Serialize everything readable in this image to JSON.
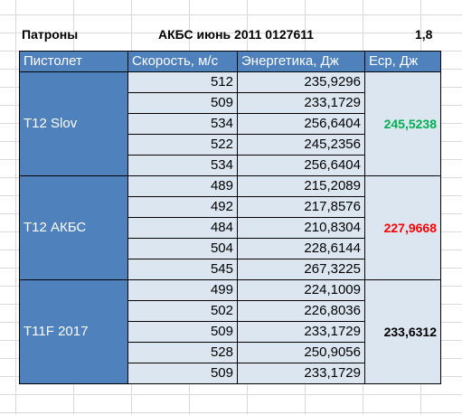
{
  "title_row": {
    "label": "Патроны",
    "ammo": "АКБС июнь 2011 0127611",
    "value": "1,8"
  },
  "columns": [
    "Пистолет",
    "Скорость, м/с",
    "Энергетика, Дж",
    "Еср, Дж"
  ],
  "groups": [
    {
      "pistol": "T12 Slov",
      "avg": "245,5238",
      "avg_color": "#00b050",
      "rows": [
        {
          "speed": "512",
          "energy": "235,9296"
        },
        {
          "speed": "509",
          "energy": "233,1729"
        },
        {
          "speed": "534",
          "energy": "256,6404"
        },
        {
          "speed": "522",
          "energy": "245,2356"
        },
        {
          "speed": "534",
          "energy": "256,6404"
        }
      ]
    },
    {
      "pistol": "T12 АКБС",
      "avg": "227,9668",
      "avg_color": "#ff0000",
      "rows": [
        {
          "speed": "489",
          "energy": "215,2089"
        },
        {
          "speed": "492",
          "energy": "217,8576"
        },
        {
          "speed": "484",
          "energy": "210,8304"
        },
        {
          "speed": "504",
          "energy": "228,6144"
        },
        {
          "speed": "545",
          "energy": "267,3225"
        }
      ]
    },
    {
      "pistol": "T11F 2017",
      "avg": "233,6312",
      "avg_color": "#000000",
      "rows": [
        {
          "speed": "499",
          "energy": "224,1009"
        },
        {
          "speed": "502",
          "energy": "226,8036"
        },
        {
          "speed": "509",
          "energy": "233,1729"
        },
        {
          "speed": "528",
          "energy": "250,9056"
        },
        {
          "speed": "509",
          "energy": "233,1729"
        }
      ]
    }
  ]
}
